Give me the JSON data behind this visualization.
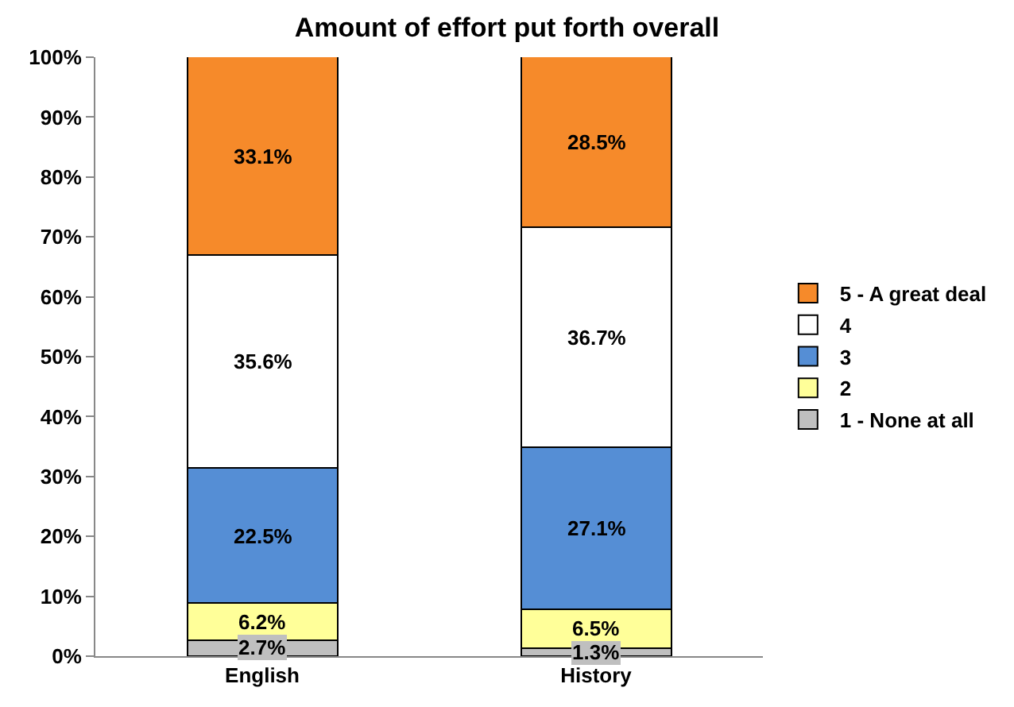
{
  "chart_data": {
    "type": "bar",
    "stacked": true,
    "title": "Amount of effort put forth overall",
    "categories": [
      "English",
      "History"
    ],
    "series": [
      {
        "name": "1 - None at all",
        "color": "#bfbfbf",
        "values": [
          2.7,
          1.3
        ],
        "value_labels": [
          "2.7%",
          "1.3%"
        ]
      },
      {
        "name": "2",
        "color": "#ffff99",
        "values": [
          6.2,
          6.5
        ],
        "value_labels": [
          "6.2%",
          "6.5%"
        ]
      },
      {
        "name": "3",
        "color": "#558ed5",
        "values": [
          22.5,
          27.1
        ],
        "value_labels": [
          "22.5%",
          "27.1%"
        ]
      },
      {
        "name": "4",
        "color": "#ffffff",
        "values": [
          35.6,
          36.7
        ],
        "value_labels": [
          "35.6%",
          "36.7%"
        ]
      },
      {
        "name": "5 - A great deal",
        "color": "#f68a2a",
        "values": [
          33.1,
          28.5
        ],
        "value_labels": [
          "33.1%",
          "28.5%"
        ]
      }
    ],
    "ylim": [
      0,
      100
    ],
    "yticks": [
      {
        "value": 0,
        "label": "0%"
      },
      {
        "value": 10,
        "label": "10%"
      },
      {
        "value": 20,
        "label": "20%"
      },
      {
        "value": 30,
        "label": "30%"
      },
      {
        "value": 40,
        "label": "40%"
      },
      {
        "value": 50,
        "label": "50%"
      },
      {
        "value": 60,
        "label": "60%"
      },
      {
        "value": 70,
        "label": "70%"
      },
      {
        "value": 80,
        "label": "80%"
      },
      {
        "value": 90,
        "label": "90%"
      },
      {
        "value": 100,
        "label": "100%"
      }
    ],
    "grid": false,
    "legend": "right"
  }
}
